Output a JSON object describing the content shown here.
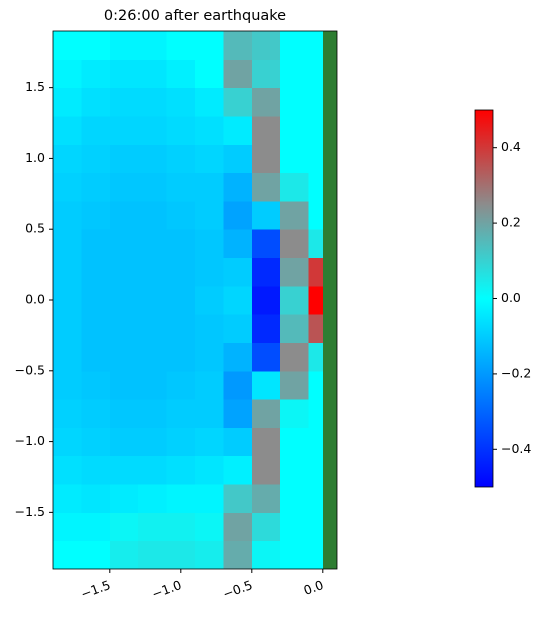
{
  "chart_data": {
    "type": "heatmap",
    "title": "0:26:00 after earthquake",
    "xlim": [
      -1.9,
      0.1
    ],
    "ylim": [
      -1.9,
      1.9
    ],
    "xticks": [
      {
        "value": -1.5,
        "label": "−1.5"
      },
      {
        "value": -1.0,
        "label": "−1.0"
      },
      {
        "value": -0.5,
        "label": "−0.5"
      },
      {
        "value": 0.0,
        "label": "0.0"
      }
    ],
    "yticks": [
      {
        "value": -1.5,
        "label": "−1.5"
      },
      {
        "value": -1.0,
        "label": "−1.0"
      },
      {
        "value": -0.5,
        "label": "−0.5"
      },
      {
        "value": 0.0,
        "label": "0.0"
      },
      {
        "value": 0.5,
        "label": "0.5"
      },
      {
        "value": 1.0,
        "label": "1.0"
      },
      {
        "value": 1.5,
        "label": "1.5"
      }
    ],
    "x_edges": [
      -1.9,
      -1.7,
      -1.5,
      -1.3,
      -1.1,
      -0.9,
      -0.7,
      -0.5,
      -0.3,
      -0.1,
      0.1
    ],
    "y_edges": [
      -1.9,
      -1.7,
      -1.5,
      -1.3,
      -1.1,
      -0.9,
      -0.7,
      -0.5,
      -0.3,
      -0.1,
      0.1,
      0.3,
      0.5,
      0.7,
      0.9,
      1.1,
      1.3,
      1.5,
      1.7,
      1.9
    ],
    "z": [
      [
        0,
        0,
        0.04,
        0.05,
        0.05,
        0.04,
        0.18,
        0.02,
        0,
        0
      ],
      [
        -0.02,
        -0.02,
        0.02,
        0.03,
        0.03,
        0.02,
        0.2,
        0.08,
        0,
        0
      ],
      [
        -0.04,
        -0.05,
        -0.04,
        -0.03,
        -0.02,
        -0.02,
        0.12,
        0.18,
        0,
        0
      ],
      [
        -0.06,
        -0.07,
        -0.07,
        -0.07,
        -0.06,
        -0.05,
        -0.03,
        0.25,
        0,
        0
      ],
      [
        -0.08,
        -0.09,
        -0.1,
        -0.1,
        -0.09,
        -0.08,
        -0.1,
        0.25,
        0,
        0
      ],
      [
        -0.09,
        -0.1,
        -0.11,
        -0.11,
        -0.1,
        -0.1,
        -0.18,
        0.2,
        0.02,
        0
      ],
      [
        -0.1,
        -0.11,
        -0.12,
        -0.12,
        -0.11,
        -0.1,
        -0.2,
        -0.05,
        0.2,
        0
      ],
      [
        -0.1,
        -0.12,
        -0.12,
        -0.12,
        -0.12,
        -0.11,
        -0.15,
        -0.35,
        0.25,
        0.05
      ],
      [
        -0.1,
        -0.12,
        -0.12,
        -0.12,
        -0.12,
        -0.11,
        -0.1,
        -0.42,
        0.15,
        0.35
      ],
      [
        -0.1,
        -0.12,
        -0.12,
        -0.12,
        -0.12,
        -0.1,
        -0.08,
        -0.45,
        0.1,
        0.5
      ],
      [
        -0.1,
        -0.12,
        -0.12,
        -0.12,
        -0.12,
        -0.11,
        -0.1,
        -0.42,
        0.2,
        0.4
      ],
      [
        -0.1,
        -0.12,
        -0.12,
        -0.12,
        -0.12,
        -0.11,
        -0.15,
        -0.35,
        0.25,
        0.05
      ],
      [
        -0.1,
        -0.11,
        -0.12,
        -0.12,
        -0.11,
        -0.1,
        -0.18,
        -0.1,
        0.2,
        0
      ],
      [
        -0.09,
        -0.1,
        -0.11,
        -0.11,
        -0.1,
        -0.1,
        -0.15,
        0.2,
        0.05,
        0
      ],
      [
        -0.08,
        -0.09,
        -0.1,
        -0.1,
        -0.09,
        -0.08,
        -0.1,
        0.25,
        0,
        0
      ],
      [
        -0.06,
        -0.08,
        -0.08,
        -0.08,
        -0.07,
        -0.06,
        -0.04,
        0.25,
        0,
        0
      ],
      [
        -0.04,
        -0.06,
        -0.07,
        -0.07,
        -0.06,
        -0.04,
        0.1,
        0.2,
        0,
        0
      ],
      [
        -0.02,
        -0.04,
        -0.05,
        -0.05,
        -0.03,
        0,
        0.2,
        0.1,
        0,
        0
      ],
      [
        0,
        0,
        -0.02,
        -0.02,
        0,
        0,
        0.15,
        0.12,
        0,
        0
      ]
    ],
    "clim": [
      -0.5,
      0.5
    ],
    "colorbar_ticks": [
      {
        "value": -0.4,
        "label": "−0.4"
      },
      {
        "value": -0.2,
        "label": "−0.2"
      },
      {
        "value": 0.0,
        "label": "0.0"
      },
      {
        "value": 0.2,
        "label": "0.2"
      },
      {
        "value": 0.4,
        "label": "0.4"
      }
    ],
    "colormap": [
      [
        -0.5,
        "#0000ff"
      ],
      [
        0.0,
        "#00ffff"
      ],
      [
        0.25,
        "#8c8c8c"
      ],
      [
        0.5,
        "#ff0000"
      ]
    ],
    "land_color": "#2e7d32"
  }
}
